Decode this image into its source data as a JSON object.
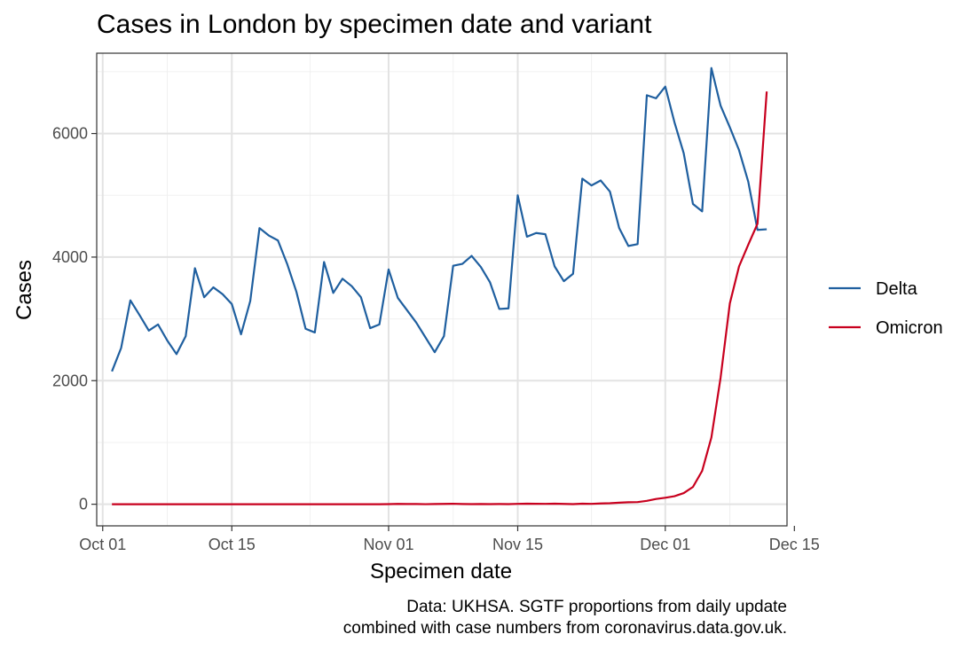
{
  "chart_data": {
    "type": "line",
    "title": "Cases in London by specimen date and variant",
    "xlabel": "Specimen date",
    "ylabel": "Cases",
    "caption": [
      "Data: UKHSA. SGTF proportions from daily update",
      "combined with case numbers from coronavirus.data.gov.uk."
    ],
    "x_axis": {
      "unit": "days since Oct 01",
      "range": [
        -0.65,
        74.2
      ],
      "ticks": [
        {
          "value": 0,
          "label": "Oct 01"
        },
        {
          "value": 14,
          "label": "Oct 15"
        },
        {
          "value": 31,
          "label": "Nov 01"
        },
        {
          "value": 45,
          "label": "Nov 15"
        },
        {
          "value": 61,
          "label": "Dec 01"
        },
        {
          "value": 75,
          "label": "Dec 15"
        }
      ]
    },
    "y_axis": {
      "range": [
        -350,
        7300
      ],
      "ticks": [
        {
          "value": 0,
          "label": "0"
        },
        {
          "value": 2000,
          "label": "2000"
        },
        {
          "value": 4000,
          "label": "4000"
        },
        {
          "value": 6000,
          "label": "6000"
        }
      ],
      "minor": [
        1000,
        3000,
        5000,
        7000
      ]
    },
    "grid": true,
    "legend_position": "right",
    "x_start_label": "Oct 02",
    "series": [
      {
        "name": "Delta",
        "color": "#1f5f9f",
        "values": [
          2150,
          2530,
          3300,
          3060,
          2810,
          2910,
          2650,
          2430,
          2720,
          3820,
          3350,
          3510,
          3400,
          3240,
          2750,
          3290,
          4470,
          4350,
          4270,
          3890,
          3440,
          2840,
          2780,
          3920,
          3420,
          3650,
          3530,
          3350,
          2850,
          2910,
          3800,
          3340,
          3140,
          2940,
          2700,
          2460,
          2720,
          3860,
          3890,
          4020,
          3840,
          3590,
          3160,
          3170,
          5000,
          4330,
          4390,
          4370,
          3850,
          3610,
          3730,
          5270,
          5160,
          5240,
          5060,
          4470,
          4180,
          4210,
          6620,
          6570,
          6760,
          6180,
          5680,
          4860,
          4740,
          7060,
          6450,
          6100,
          5730,
          5220,
          4440,
          4450
        ]
      },
      {
        "name": "Omicron",
        "color": "#c8001e",
        "values": [
          0,
          0,
          0,
          0,
          0,
          0,
          0,
          0,
          0,
          0,
          0,
          0,
          0,
          0,
          0,
          0,
          0,
          0,
          0,
          0,
          0,
          0,
          0,
          0,
          0,
          0,
          0,
          0,
          0,
          0,
          2,
          5,
          4,
          3,
          1,
          3,
          5,
          8,
          4,
          2,
          4,
          2,
          3,
          2,
          6,
          9,
          7,
          6,
          9,
          5,
          2,
          9,
          6,
          12,
          16,
          25,
          32,
          35,
          55,
          85,
          105,
          130,
          180,
          280,
          540,
          1080,
          2050,
          3250,
          3850,
          4200,
          4540,
          6680
        ]
      }
    ]
  }
}
